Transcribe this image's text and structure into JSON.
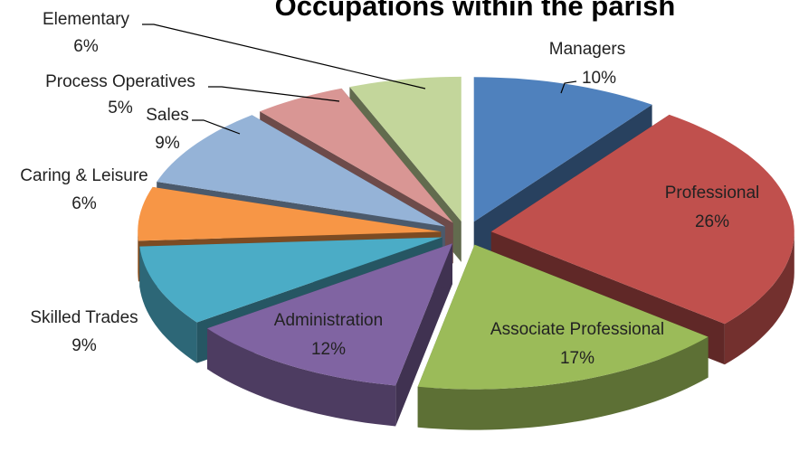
{
  "chart_data": {
    "type": "pie3d",
    "title": "Occupations within the parish",
    "categories": [
      "Managers",
      "Professional",
      "Associate Professional",
      "Administration",
      "Skilled Trades",
      "Caring & Leisure",
      "Sales",
      "Process Operatives",
      "Elementary"
    ],
    "values": [
      10,
      26,
      17,
      12,
      9,
      6,
      9,
      5,
      6
    ],
    "value_labels": [
      "10%",
      "26%",
      "17%",
      "12%",
      "9%",
      "6%",
      "9%",
      "5%",
      "6%"
    ],
    "colors": [
      "#4f81bd",
      "#c0504d",
      "#9bbb59",
      "#8064a2",
      "#4bacc6",
      "#f79646",
      "#95b3d7",
      "#d99694",
      "#c3d69b"
    ]
  }
}
